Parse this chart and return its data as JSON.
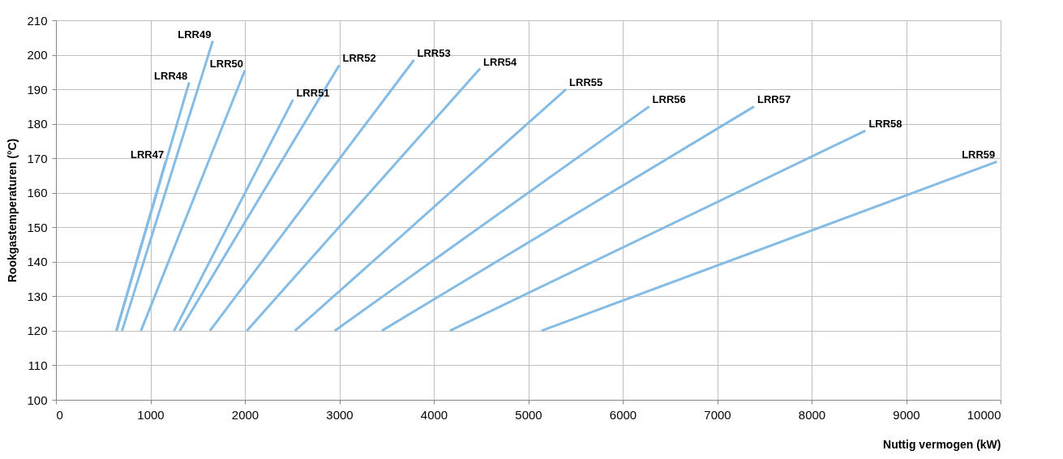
{
  "chart_data": {
    "type": "line",
    "xlabel": "Nuttig vermogen (kW)",
    "ylabel": "Rookgastemperaturen (°C)",
    "xlim": [
      0,
      10000
    ],
    "xticks": [
      0,
      1000,
      2000,
      3000,
      4000,
      5000,
      6000,
      7000,
      8000,
      9000,
      10000
    ],
    "ylim": [
      100,
      210
    ],
    "yticks": [
      100,
      110,
      120,
      130,
      140,
      150,
      160,
      170,
      180,
      190,
      200,
      210
    ],
    "grid": true,
    "legend": false,
    "marker": "none",
    "line_style": "solid",
    "series": [
      {
        "name": "LRR47",
        "color": "#85bce6",
        "x": [
          640,
          1160
        ],
        "values": [
          120,
          169
        ]
      },
      {
        "name": "LRR48",
        "color": "#85bce6",
        "x": [
          640,
          1410
        ],
        "values": [
          120,
          192
        ]
      },
      {
        "name": "LRR49",
        "color": "#85bce6",
        "x": [
          700,
          1660
        ],
        "values": [
          120,
          204
        ]
      },
      {
        "name": "LRR50",
        "color": "#85bce6",
        "x": [
          900,
          2000
        ],
        "values": [
          120,
          195.5
        ]
      },
      {
        "name": "LRR51",
        "color": "#85bce6",
        "x": [
          1250,
          2510
        ],
        "values": [
          120,
          187
        ]
      },
      {
        "name": "LRR52",
        "color": "#85bce6",
        "x": [
          1310,
          3000
        ],
        "values": [
          120,
          197
        ]
      },
      {
        "name": "LRR53",
        "color": "#85bce6",
        "x": [
          1630,
          3790
        ],
        "values": [
          120,
          198.5
        ]
      },
      {
        "name": "LRR54",
        "color": "#85bce6",
        "x": [
          2020,
          4490
        ],
        "values": [
          120,
          196
        ]
      },
      {
        "name": "LRR55",
        "color": "#85bce6",
        "x": [
          2530,
          5400
        ],
        "values": [
          120,
          190
        ]
      },
      {
        "name": "LRR56",
        "color": "#85bce6",
        "x": [
          2950,
          6280
        ],
        "values": [
          120,
          185
        ]
      },
      {
        "name": "LRR57",
        "color": "#85bce6",
        "x": [
          3450,
          7390
        ],
        "values": [
          120,
          185
        ]
      },
      {
        "name": "LRR58",
        "color": "#85bce6",
        "x": [
          4170,
          8570
        ],
        "values": [
          120,
          178
        ]
      },
      {
        "name": "LRR59",
        "color": "#85bce6",
        "x": [
          5140,
          9960
        ],
        "values": [
          120,
          169
        ]
      }
    ]
  }
}
